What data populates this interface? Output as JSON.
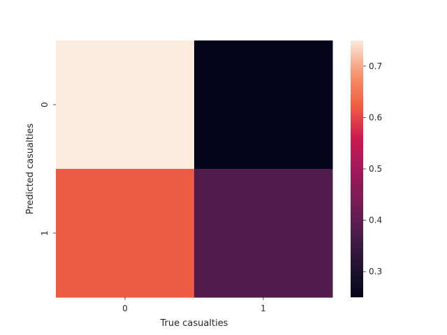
{
  "chart_data": {
    "type": "heatmap",
    "title": "",
    "xlabel": "True casualties",
    "ylabel": "Predicted casualties",
    "x_categories": [
      "0",
      "1"
    ],
    "y_categories": [
      "0",
      "1"
    ],
    "values": [
      [
        0.75,
        0.25
      ],
      [
        0.62,
        0.38
      ]
    ],
    "colorbar": {
      "range": [
        0.25,
        0.75
      ],
      "ticks": [
        "0.3",
        "0.4",
        "0.5",
        "0.6",
        "0.7"
      ],
      "colormap": "rocket"
    },
    "grid": false
  }
}
